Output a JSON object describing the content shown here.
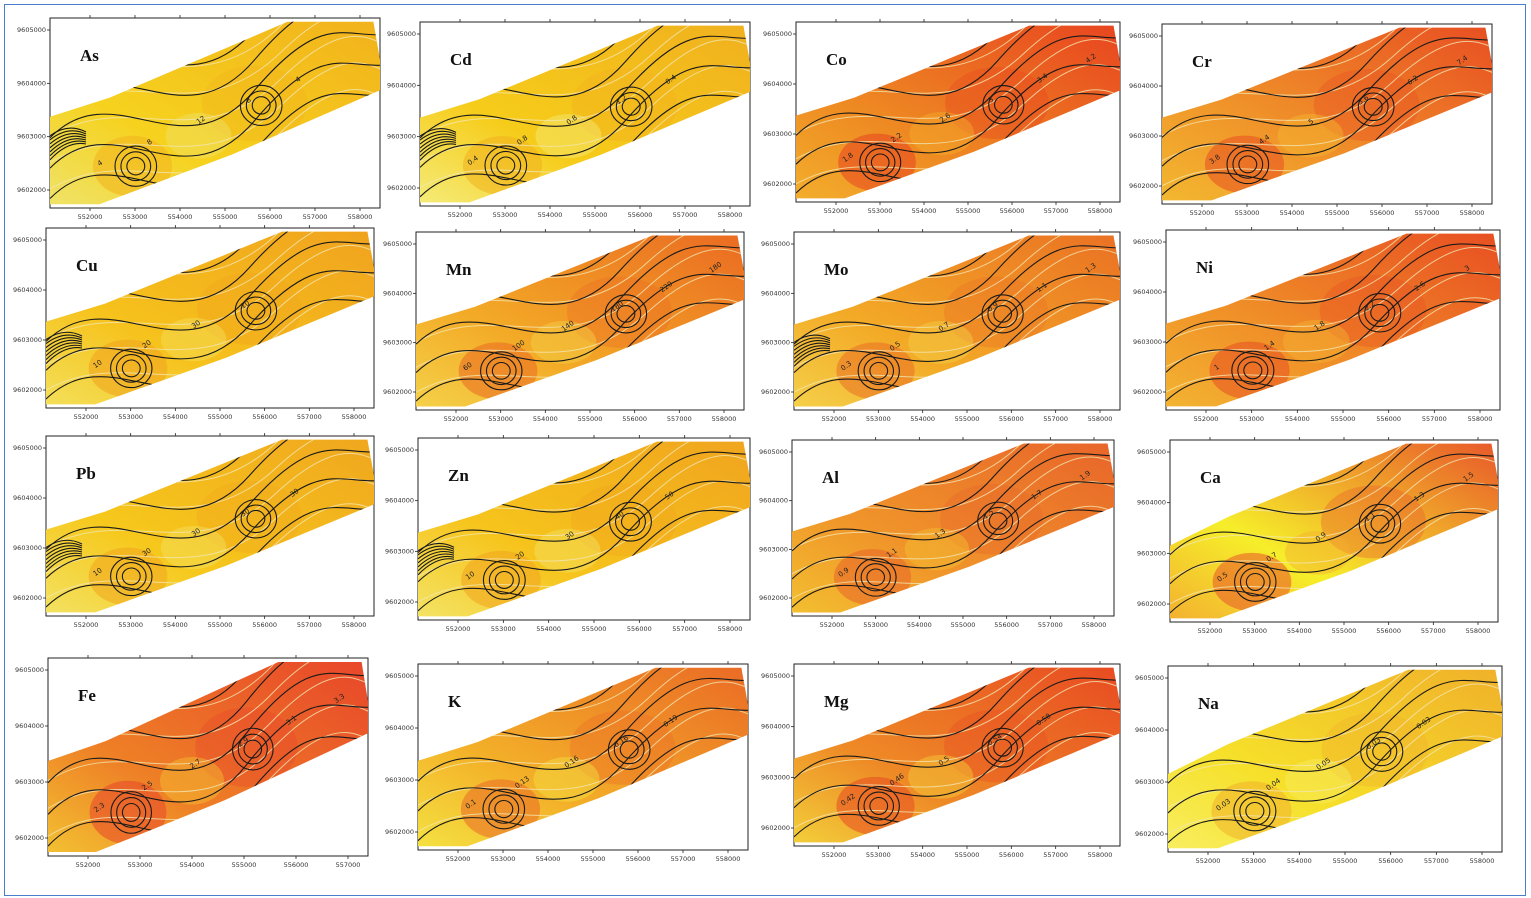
{
  "x_ticks_full": [
    "552000",
    "553000",
    "554000",
    "555000",
    "556000",
    "557000",
    "558000"
  ],
  "x_ticks_fe": [
    "552000",
    "553000",
    "554000",
    "555000",
    "556000",
    "557000"
  ],
  "y_ticks": [
    "9605000",
    "9604000",
    "9603000",
    "9602000"
  ],
  "panels": [
    {
      "element": "As",
      "colors": [
        "#f6d21e",
        "#f2b21c",
        "#efe36a"
      ],
      "labels": [
        "4",
        "8",
        "12",
        "8",
        "4"
      ]
    },
    {
      "element": "Cd",
      "colors": [
        "#f6cc1a",
        "#f0b01e",
        "#f5ec7a"
      ],
      "labels": [
        "0.4",
        "0.8",
        "0.8",
        "1.2",
        "0.4"
      ]
    },
    {
      "element": "Co",
      "colors": [
        "#ee8a22",
        "#e84420",
        "#f3ae2c"
      ],
      "labels": [
        "1.8",
        "2.2",
        "2.6",
        "3",
        "3.4",
        "4.2"
      ]
    },
    {
      "element": "Cr",
      "colors": [
        "#f0962a",
        "#e84e22",
        "#f3b830"
      ],
      "labels": [
        "3.8",
        "4.4",
        "5",
        "5.6",
        "6.2",
        "7.4"
      ]
    },
    {
      "element": "Cu",
      "colors": [
        "#f6c21c",
        "#f0a21e",
        "#f3e05a"
      ],
      "labels": [
        "10",
        "20",
        "30",
        "10"
      ]
    },
    {
      "element": "Mn",
      "colors": [
        "#f3aa26",
        "#ea6a22",
        "#f5d24a"
      ],
      "labels": [
        "60",
        "100",
        "140",
        "180",
        "220",
        "180"
      ]
    },
    {
      "element": "Mo",
      "colors": [
        "#f3aa26",
        "#ea7024",
        "#f5d04a"
      ],
      "labels": [
        "0.3",
        "0.5",
        "0.7",
        "0.9",
        "1.1",
        "1.3"
      ]
    },
    {
      "element": "Ni",
      "colors": [
        "#f09228",
        "#e84e22",
        "#f3b432"
      ],
      "labels": [
        "1",
        "1.4",
        "1.8",
        "2.2",
        "2.6",
        "3"
      ]
    },
    {
      "element": "Pb",
      "colors": [
        "#f6c81c",
        "#f0a61e",
        "#f3e262"
      ],
      "labels": [
        "10",
        "30",
        "30",
        "30",
        "30"
      ]
    },
    {
      "element": "Zn",
      "colors": [
        "#f6c41c",
        "#f0a41e",
        "#f4e466"
      ],
      "labels": [
        "10",
        "20",
        "30",
        "40",
        "50"
      ]
    },
    {
      "element": "Al",
      "colors": [
        "#f0962a",
        "#e8642a",
        "#f3c030"
      ],
      "labels": [
        "0.9",
        "1.1",
        "1.3",
        "1.5",
        "1.7",
        "1.9"
      ]
    },
    {
      "element": "Ca",
      "colors": [
        "#f6ee2a",
        "#e8562a",
        "#f3b030"
      ],
      "labels": [
        "0.5",
        "0.7",
        "0.9",
        "1.1",
        "1.3",
        "1.5"
      ]
    },
    {
      "element": "Fe",
      "colors": [
        "#ee8026",
        "#e8462a",
        "#f3c232"
      ],
      "labels": [
        "2.3",
        "2.5",
        "2.7",
        "2.9",
        "3.1",
        "3.3"
      ]
    },
    {
      "element": "K",
      "colors": [
        "#f3b028",
        "#ea6a26",
        "#f5e242"
      ],
      "labels": [
        "0.1",
        "0.13",
        "0.16",
        "0.16",
        "0.19"
      ]
    },
    {
      "element": "Mg",
      "colors": [
        "#ee8a26",
        "#e84a22",
        "#f3d03a"
      ],
      "labels": [
        "0.42",
        "0.46",
        "0.5",
        "0.54",
        "0.58"
      ]
    },
    {
      "element": "Na",
      "colors": [
        "#f6e02a",
        "#f0b02a",
        "#f8ee60"
      ],
      "labels": [
        "0.03",
        "0.04",
        "0.05",
        "0.03",
        "0.03"
      ]
    }
  ]
}
